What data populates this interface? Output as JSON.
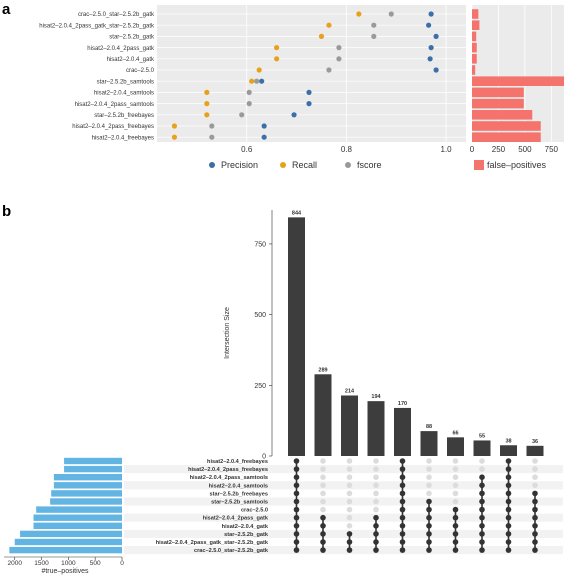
{
  "panel_labels": {
    "a": "a",
    "b": "b"
  },
  "colors": {
    "precision": "#3b6fa7",
    "recall": "#e8a11a",
    "fscore": "#9a9a9a",
    "false_positives": "#f4736c",
    "true_positives": "#62b4e3",
    "intersection_bar": "#3d3d3d",
    "dot_active": "#333333",
    "dot_inactive": "#dcdcdc",
    "panel_bg": "#ebebeb"
  },
  "chart_data": [
    {
      "type": "scatter",
      "name": "dot_metrics",
      "categories": [
        "crac–2.5.0_star–2.5.2b_gatk",
        "hisat2–2.0.4_2pass_gatk_star–2.5.2b_gatk",
        "star–2.5.2b_gatk",
        "hisat2–2.0.4_2pass_gatk",
        "hisat2–2.0.4_gatk",
        "crac–2.5.0",
        "star–2.5.2b_samtools",
        "hisat2–2.0.4_samtools",
        "hisat2–2.0.4_2pass_samtools",
        "star–2.5.2b_freebayes",
        "hisat2–2.0.4_2pass_freebayes",
        "hisat2–2.0.4_freebayes"
      ],
      "series": [
        {
          "name": "Precision",
          "values": [
            0.97,
            0.965,
            0.98,
            0.97,
            0.968,
            0.98,
            0.63,
            0.725,
            0.725,
            0.695,
            0.635,
            0.635
          ]
        },
        {
          "name": "Recall",
          "values": [
            0.825,
            0.765,
            0.75,
            0.66,
            0.66,
            0.625,
            0.61,
            0.52,
            0.52,
            0.52,
            0.455,
            0.455
          ]
        },
        {
          "name": "fscore",
          "values": [
            0.89,
            0.855,
            0.855,
            0.785,
            0.785,
            0.765,
            0.62,
            0.605,
            0.605,
            0.59,
            0.53,
            0.53
          ]
        }
      ],
      "xticks": [
        "0.6",
        "0.8",
        "1.0"
      ],
      "xlim": [
        0.42,
        1.04
      ],
      "legend": [
        "Precision",
        "Recall",
        "fscore"
      ],
      "legend_position": "bottom",
      "grid": true
    },
    {
      "type": "bar",
      "name": "false_positives",
      "orientation": "horizontal",
      "categories": [
        "crac–2.5.0_star–2.5.2b_gatk",
        "hisat2–2.0.4_2pass_gatk_star–2.5.2b_gatk",
        "star–2.5.2b_gatk",
        "hisat2–2.0.4_2pass_gatk",
        "hisat2–2.0.4_gatk",
        "crac–2.5.0",
        "star–2.5.2b_samtools",
        "hisat2–2.0.4_samtools",
        "hisat2–2.0.4_2pass_samtools",
        "star–2.5.2b_freebayes",
        "hisat2–2.0.4_2pass_freebayes",
        "hisat2–2.0.4_freebayes"
      ],
      "values": [
        60,
        70,
        40,
        45,
        45,
        30,
        870,
        490,
        490,
        570,
        650,
        650
      ],
      "xticks": [
        "0",
        "250",
        "500",
        "750"
      ],
      "xlim": [
        0,
        870
      ],
      "legend": [
        "false–positives"
      ],
      "legend_position": "bottom",
      "grid": true
    },
    {
      "type": "bar",
      "name": "intersection_sizes",
      "values": [
        844,
        289,
        214,
        194,
        170,
        88,
        66,
        55,
        38,
        36
      ],
      "value_labels": [
        "844",
        "289",
        "214",
        "194",
        "170",
        "88",
        "66",
        "55",
        "38",
        "36"
      ],
      "ylabel": "Intersection Size",
      "yticks": [
        "0",
        "250",
        "500",
        "750"
      ],
      "ylim": [
        0,
        870
      ]
    },
    {
      "type": "bar",
      "name": "true_positives",
      "orientation": "horizontal",
      "categories": [
        "hisat2–2.0.4_freebayes",
        "hisat2–2.0.4_2pass_freebayes",
        "hisat2–2.0.4_2pass_samtools",
        "hisat2–2.0.4_samtools",
        "star–2.5.2b_freebayes",
        "star–2.5.2b_samtools",
        "crac–2.5.0",
        "hisat2–2.0.4_2pass_gatk",
        "hisat2–2.0.4_gatk",
        "star–2.5.2b_gatk",
        "hisat2–2.0.4_2pass_gatk_star–2.5.2b_gatk",
        "crac–2.5.0_star–2.5.2b_gatk"
      ],
      "values": [
        1080,
        1080,
        1270,
        1270,
        1320,
        1340,
        1600,
        1650,
        1650,
        1900,
        2000,
        2100
      ],
      "xlabel": "#true–positives",
      "xticks": [
        "2000",
        "1500",
        "1000",
        "500",
        "0"
      ],
      "xlim": [
        0,
        2200
      ]
    },
    {
      "type": "table",
      "name": "intersection_matrix",
      "rows": [
        "hisat2–2.0.4_freebayes",
        "hisat2–2.0.4_2pass_freebayes",
        "hisat2–2.0.4_2pass_samtools",
        "hisat2–2.0.4_samtools",
        "star–2.5.2b_freebayes",
        "star–2.5.2b_samtools",
        "crac–2.5.0",
        "hisat2–2.0.4_2pass_gatk",
        "hisat2–2.0.4_gatk",
        "star–2.5.2b_gatk",
        "hisat2–2.0.4_2pass_gatk_star–2.5.2b_gatk",
        "crac–2.5.0_star–2.5.2b_gatk"
      ],
      "columns_active_rows": [
        [
          0,
          1,
          2,
          3,
          4,
          5,
          6,
          7,
          8,
          9,
          10,
          11
        ],
        [
          7,
          8,
          9,
          10,
          11
        ],
        [
          9,
          10,
          11
        ],
        [
          7,
          8,
          9,
          10,
          11
        ],
        [
          0,
          1,
          2,
          3,
          4,
          5,
          6,
          7,
          8,
          9,
          10,
          11
        ],
        [
          5,
          6,
          7,
          8,
          9,
          10,
          11
        ],
        [
          6,
          7,
          8,
          9,
          10,
          11
        ],
        [
          2,
          3,
          4,
          5,
          6,
          7,
          8,
          9,
          10,
          11
        ],
        [
          0,
          1,
          2,
          3,
          4,
          5,
          6,
          7,
          8,
          9,
          10,
          11
        ],
        [
          4,
          5,
          6,
          7,
          8,
          9,
          10,
          11
        ]
      ]
    }
  ]
}
